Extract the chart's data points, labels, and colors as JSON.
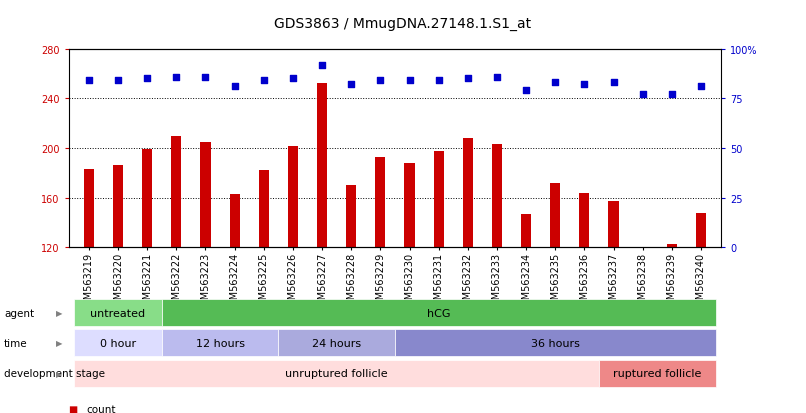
{
  "title": "GDS3863 / MmugDNA.27148.1.S1_at",
  "samples": [
    "GSM563219",
    "GSM563220",
    "GSM563221",
    "GSM563222",
    "GSM563223",
    "GSM563224",
    "GSM563225",
    "GSM563226",
    "GSM563227",
    "GSM563228",
    "GSM563229",
    "GSM563230",
    "GSM563231",
    "GSM563232",
    "GSM563233",
    "GSM563234",
    "GSM563235",
    "GSM563236",
    "GSM563237",
    "GSM563238",
    "GSM563239",
    "GSM563240"
  ],
  "counts": [
    183,
    186,
    199,
    210,
    205,
    163,
    182,
    202,
    252,
    170,
    193,
    188,
    198,
    208,
    203,
    147,
    172,
    164,
    157,
    117,
    123,
    148
  ],
  "percentiles": [
    84,
    84,
    85,
    86,
    86,
    81,
    84,
    85,
    92,
    82,
    84,
    84,
    84,
    85,
    86,
    79,
    83,
    82,
    83,
    77,
    77,
    81
  ],
  "ymin": 120,
  "ymax": 280,
  "yticks": [
    120,
    160,
    200,
    240,
    280
  ],
  "right_yticks": [
    0,
    25,
    50,
    75,
    100
  ],
  "bar_color": "#cc0000",
  "scatter_color": "#0000cc",
  "agent_groups": [
    {
      "label": "untreated",
      "start": 0,
      "end": 3,
      "color": "#88dd88"
    },
    {
      "label": "hCG",
      "start": 3,
      "end": 22,
      "color": "#55bb55"
    }
  ],
  "time_groups": [
    {
      "label": "0 hour",
      "start": 0,
      "end": 3,
      "color": "#ddddff"
    },
    {
      "label": "12 hours",
      "start": 3,
      "end": 7,
      "color": "#bbbbee"
    },
    {
      "label": "24 hours",
      "start": 7,
      "end": 11,
      "color": "#aaaadd"
    },
    {
      "label": "36 hours",
      "start": 11,
      "end": 22,
      "color": "#8888cc"
    }
  ],
  "dev_groups": [
    {
      "label": "unruptured follicle",
      "start": 0,
      "end": 18,
      "color": "#ffdddd"
    },
    {
      "label": "ruptured follicle",
      "start": 18,
      "end": 22,
      "color": "#ee8888"
    }
  ],
  "legend_count_color": "#cc0000",
  "legend_scatter_color": "#0000cc",
  "title_fontsize": 10,
  "tick_fontsize": 7,
  "annot_fontsize": 8,
  "label_fontsize": 7.5
}
